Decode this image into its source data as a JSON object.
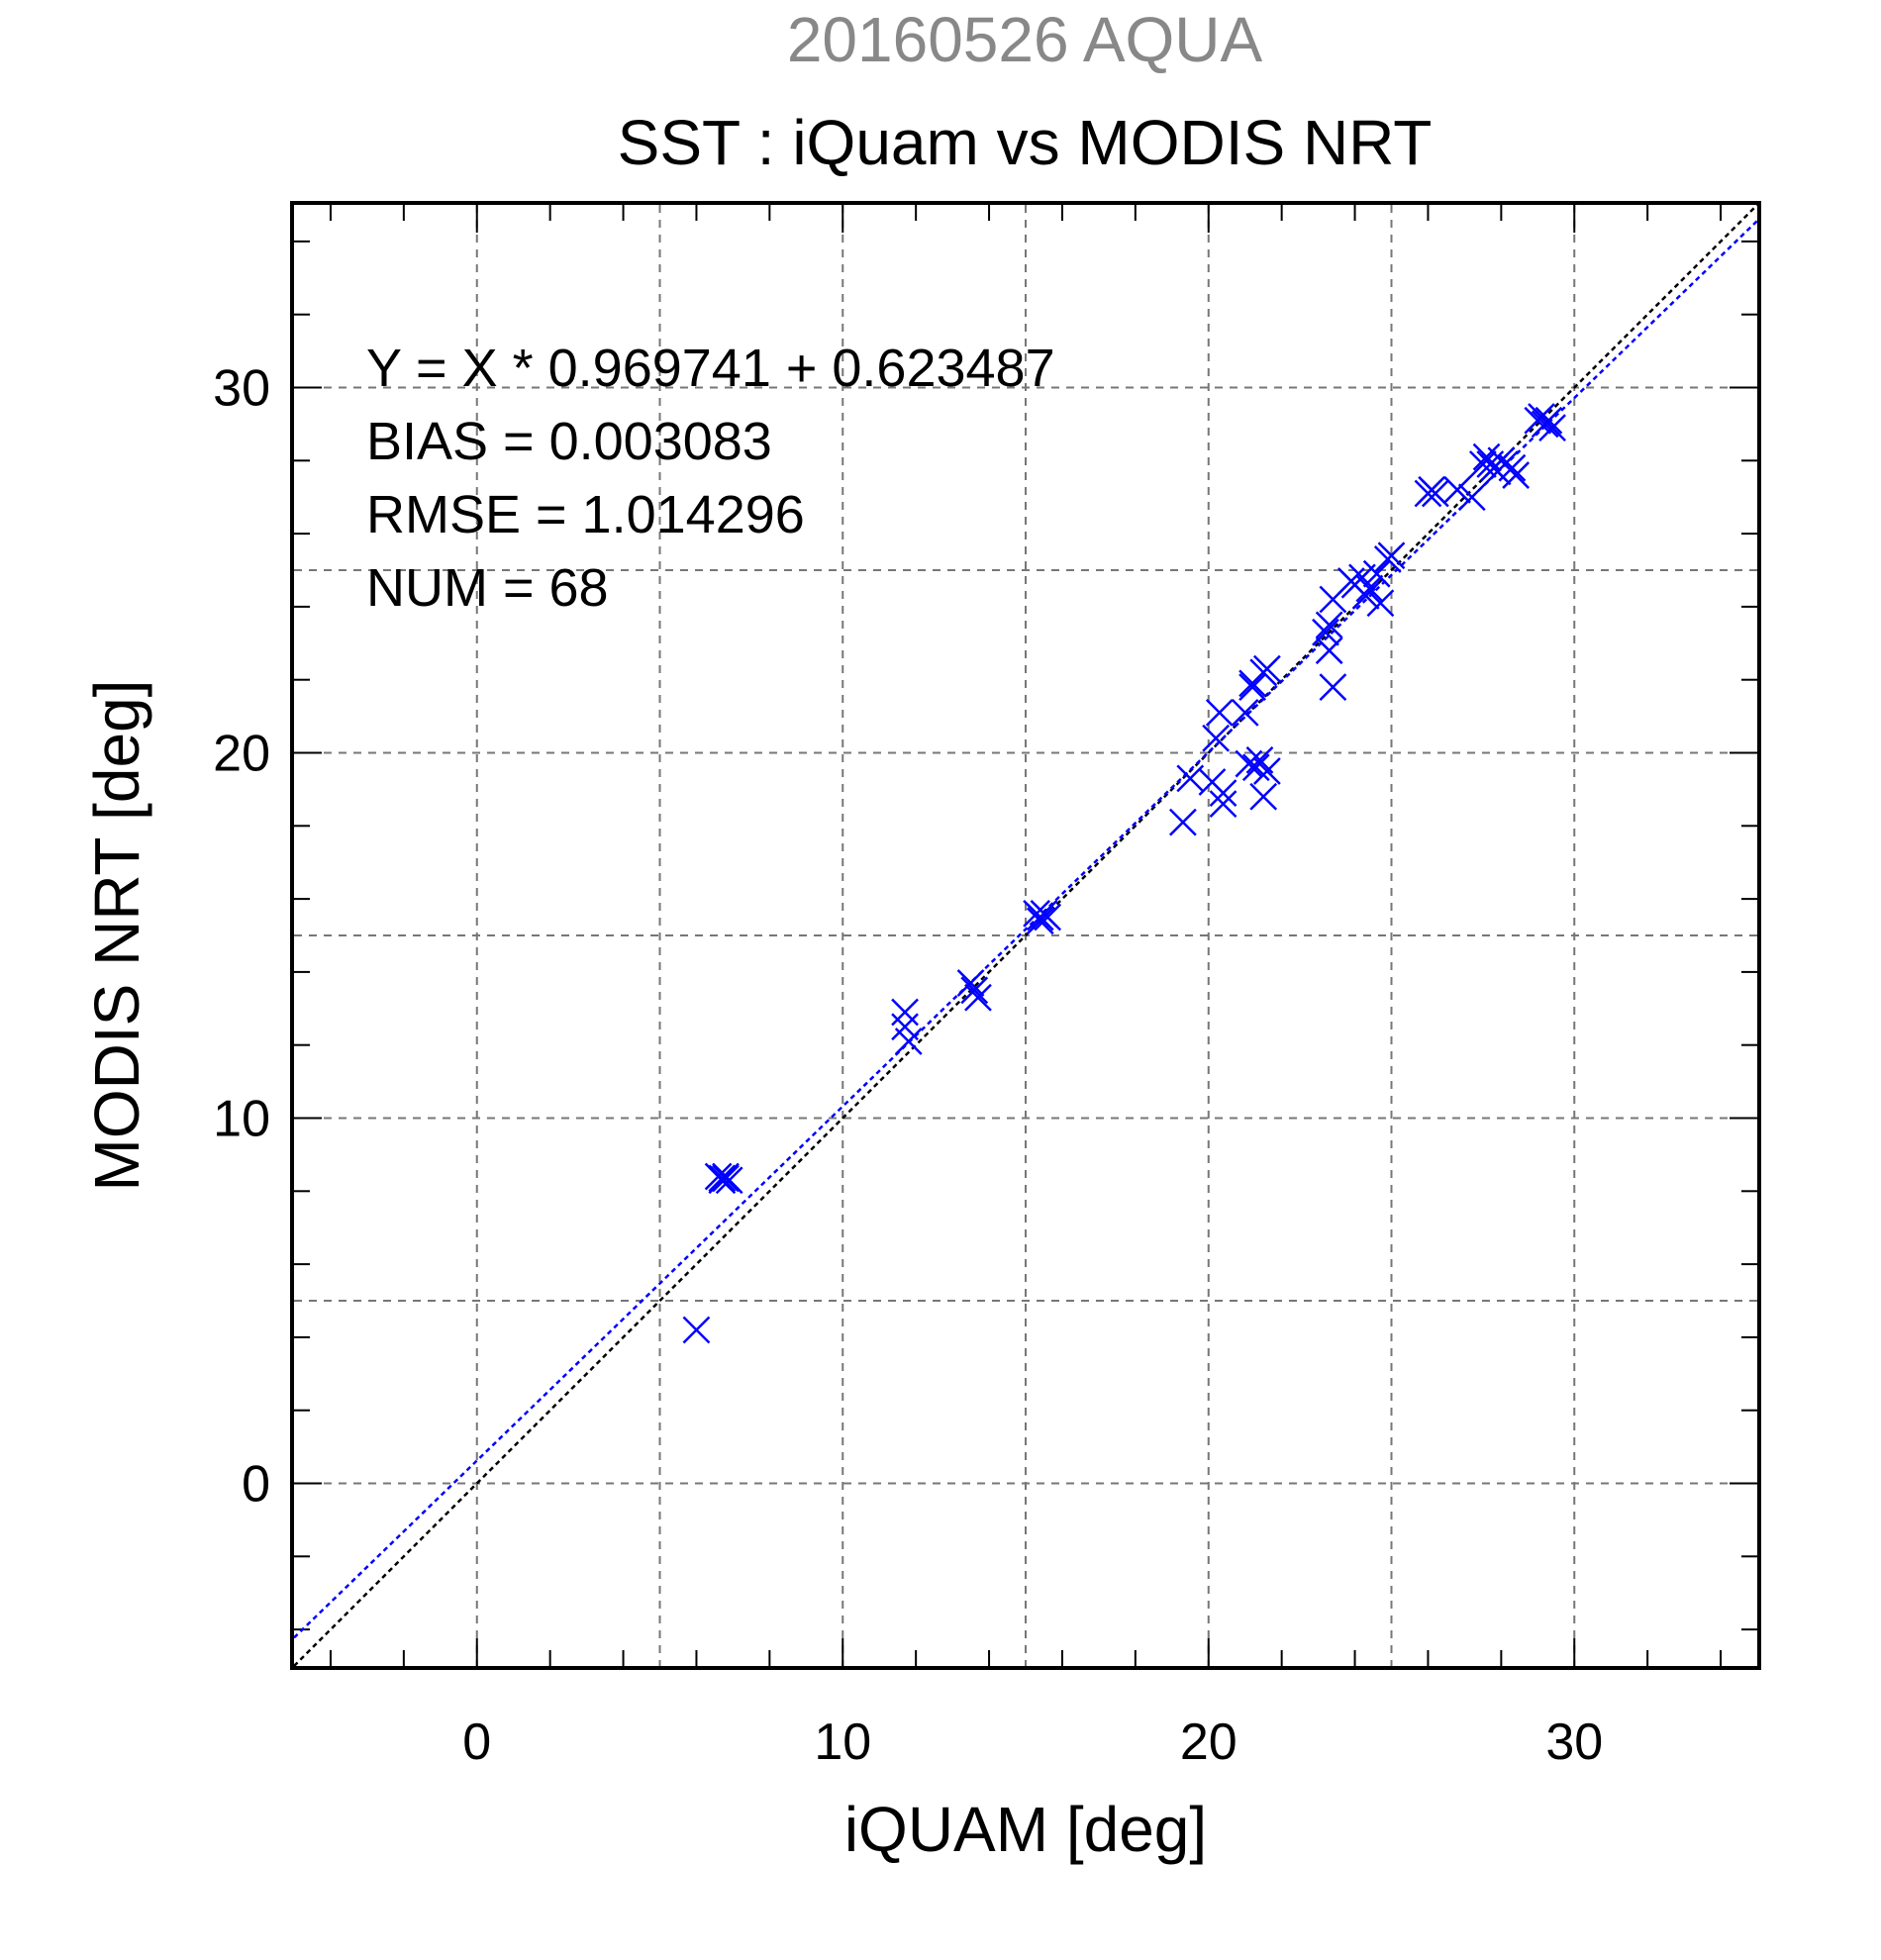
{
  "chart_data": {
    "type": "scatter",
    "supertitle": "20160526 AQUA",
    "title": "SST : iQuam vs MODIS NRT",
    "xlabel": "iQUAM [deg]",
    "ylabel": "MODIS NRT [deg]",
    "xlim": [
      -5,
      35
    ],
    "ylim": [
      -5,
      35
    ],
    "xticks": [
      0,
      10,
      20,
      30
    ],
    "yticks": [
      0,
      10,
      20,
      30
    ],
    "grid": true,
    "stats": [
      "Y = X * 0.969741 + 0.623487",
      "BIAS = 0.003083",
      "RMSE = 1.014296",
      "NUM = 68"
    ],
    "fit": {
      "slope": 0.969741,
      "intercept": 0.623487
    },
    "colors": {
      "points": "#0000ff",
      "fit_line": "#0000ff",
      "one_to_one_line": "#000000",
      "supertitle": "#888888"
    },
    "points": [
      [
        6.0,
        4.2
      ],
      [
        6.6,
        8.4
      ],
      [
        6.7,
        8.3
      ],
      [
        6.8,
        8.4
      ],
      [
        6.9,
        8.3
      ],
      [
        6.7,
        8.35
      ],
      [
        6.8,
        8.35
      ],
      [
        11.7,
        12.9
      ],
      [
        11.7,
        12.5
      ],
      [
        11.8,
        12.1
      ],
      [
        13.5,
        13.7
      ],
      [
        13.6,
        13.5
      ],
      [
        13.7,
        13.3
      ],
      [
        15.3,
        15.6
      ],
      [
        15.4,
        15.5
      ],
      [
        15.5,
        15.6
      ],
      [
        15.4,
        15.4
      ],
      [
        15.6,
        15.5
      ],
      [
        19.3,
        18.1
      ],
      [
        19.5,
        19.3
      ],
      [
        20.1,
        19.2
      ],
      [
        20.2,
        20.4
      ],
      [
        20.3,
        21.1
      ],
      [
        20.4,
        18.9
      ],
      [
        20.4,
        18.6
      ],
      [
        21.0,
        21.1
      ],
      [
        21.1,
        19.7
      ],
      [
        21.2,
        21.8
      ],
      [
        21.3,
        19.6
      ],
      [
        21.4,
        19.8
      ],
      [
        21.5,
        22.2
      ],
      [
        21.6,
        19.5
      ],
      [
        21.5,
        18.8
      ],
      [
        21.6,
        22.3
      ],
      [
        23.2,
        23.3
      ],
      [
        23.3,
        22.8
      ],
      [
        23.4,
        21.8
      ],
      [
        23.4,
        24.2
      ],
      [
        23.9,
        24.7
      ],
      [
        24.0,
        24.6
      ],
      [
        24.2,
        24.8
      ],
      [
        24.4,
        24.5
      ],
      [
        24.6,
        24.9
      ],
      [
        24.7,
        24.1
      ],
      [
        24.9,
        25.3
      ],
      [
        25.0,
        25.4
      ],
      [
        26.0,
        27.1
      ],
      [
        26.1,
        27.2
      ],
      [
        26.2,
        27.1
      ],
      [
        26.8,
        27.2
      ],
      [
        27.2,
        27.0
      ],
      [
        27.5,
        27.9
      ],
      [
        27.6,
        28.1
      ],
      [
        27.7,
        27.9
      ],
      [
        27.8,
        27.8
      ],
      [
        27.9,
        27.7
      ],
      [
        28.0,
        28.0
      ],
      [
        28.1,
        27.9
      ],
      [
        28.3,
        27.8
      ],
      [
        28.4,
        27.6
      ],
      [
        29.0,
        29.1
      ],
      [
        29.2,
        29.0
      ],
      [
        29.1,
        29.2
      ],
      [
        29.3,
        29.1
      ],
      [
        29.4,
        28.9
      ],
      [
        24.3,
        24.3
      ],
      [
        21.2,
        21.9
      ],
      [
        23.3,
        23.5
      ]
    ]
  }
}
